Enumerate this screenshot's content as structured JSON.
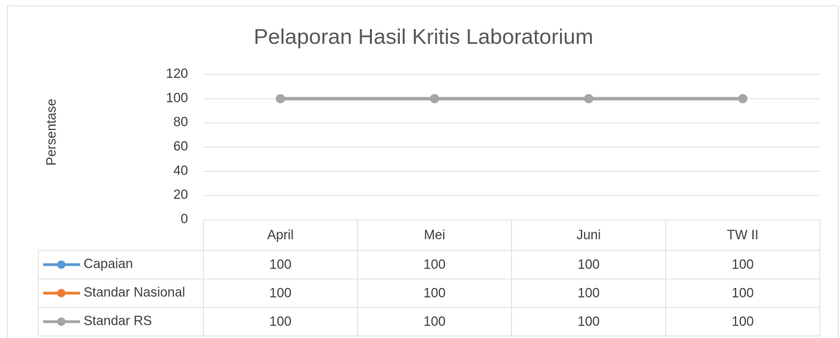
{
  "chart_data": {
    "type": "line",
    "title": "Pelaporan Hasil Kritis Laboratorium",
    "y_label": "Persentase",
    "categories": [
      "April",
      "Mei",
      "Juni",
      "TW II"
    ],
    "series": [
      {
        "name": "Capaian",
        "color": "#5b9bd5",
        "values": [
          100,
          100,
          100,
          100
        ]
      },
      {
        "name": "Standar Nasional",
        "color": "#ed7d31",
        "values": [
          100,
          100,
          100,
          100
        ]
      },
      {
        "name": "Standar RS",
        "color": "#a5a5a5",
        "values": [
          100,
          100,
          100,
          100
        ]
      }
    ],
    "ylim": [
      0,
      120
    ],
    "yticks": [
      0,
      20,
      40,
      60,
      80,
      100,
      120
    ],
    "grid": true,
    "data_table": true
  }
}
